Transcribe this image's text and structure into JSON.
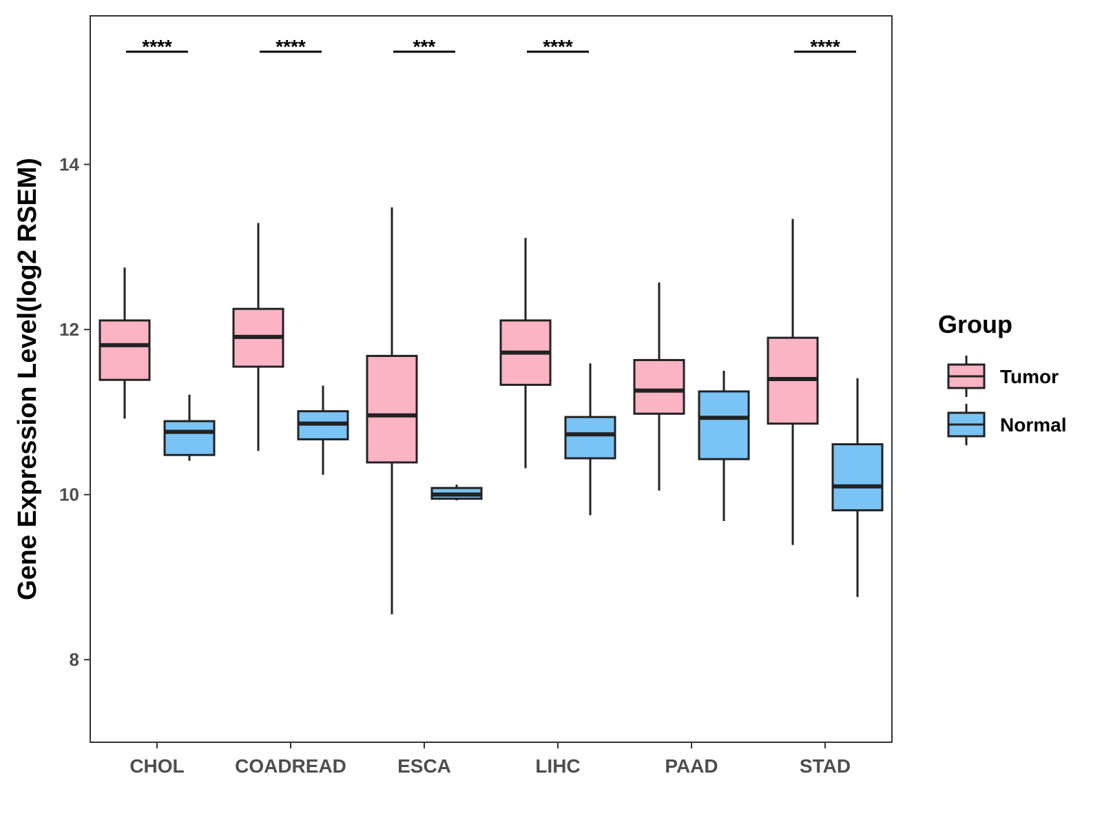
{
  "chart_data": {
    "type": "boxplot",
    "title": "",
    "xlabel": "",
    "ylabel": "Gene Expression Level(log2 RSEM)",
    "ylim": [
      7,
      15.8
    ],
    "yticks": [
      8,
      10,
      12,
      14
    ],
    "categories": [
      "CHOL",
      "COADREAD",
      "ESCA",
      "LIHC",
      "PAAD",
      "STAD"
    ],
    "legend": {
      "title": "Group",
      "position": "right",
      "entries": [
        {
          "name": "Tumor",
          "color": "#fbb4c4"
        },
        {
          "name": "Normal",
          "color": "#7ac3f5"
        }
      ]
    },
    "series": [
      {
        "name": "Tumor",
        "color": "#fbb4c4",
        "boxes": [
          {
            "min": 10.92,
            "q1": 11.39,
            "median": 11.81,
            "q3": 12.11,
            "max": 12.75
          },
          {
            "min": 10.53,
            "q1": 11.55,
            "median": 11.91,
            "q3": 12.25,
            "max": 13.29
          },
          {
            "min": 8.55,
            "q1": 10.39,
            "median": 10.96,
            "q3": 11.68,
            "max": 13.48
          },
          {
            "min": 10.32,
            "q1": 11.33,
            "median": 11.72,
            "q3": 12.11,
            "max": 13.11
          },
          {
            "min": 10.05,
            "q1": 10.98,
            "median": 11.26,
            "q3": 11.63,
            "max": 12.57
          },
          {
            "min": 9.39,
            "q1": 10.86,
            "median": 11.4,
            "q3": 11.9,
            "max": 13.34
          }
        ]
      },
      {
        "name": "Normal",
        "color": "#7ac3f5",
        "boxes": [
          {
            "min": 10.41,
            "q1": 10.48,
            "median": 10.76,
            "q3": 10.89,
            "max": 11.21
          },
          {
            "min": 10.24,
            "q1": 10.67,
            "median": 10.86,
            "q3": 11.01,
            "max": 11.32
          },
          {
            "min": 9.93,
            "q1": 9.95,
            "median": 10.0,
            "q3": 10.08,
            "max": 10.12
          },
          {
            "min": 9.75,
            "q1": 10.44,
            "median": 10.73,
            "q3": 10.94,
            "max": 11.59
          },
          {
            "min": 9.68,
            "q1": 10.43,
            "median": 10.93,
            "q3": 11.25,
            "max": 11.5
          },
          {
            "min": 8.76,
            "q1": 9.81,
            "median": 10.1,
            "q3": 10.61,
            "max": 11.41
          }
        ]
      }
    ],
    "significance": [
      "****",
      "****",
      "***",
      "****",
      "",
      "****"
    ]
  }
}
